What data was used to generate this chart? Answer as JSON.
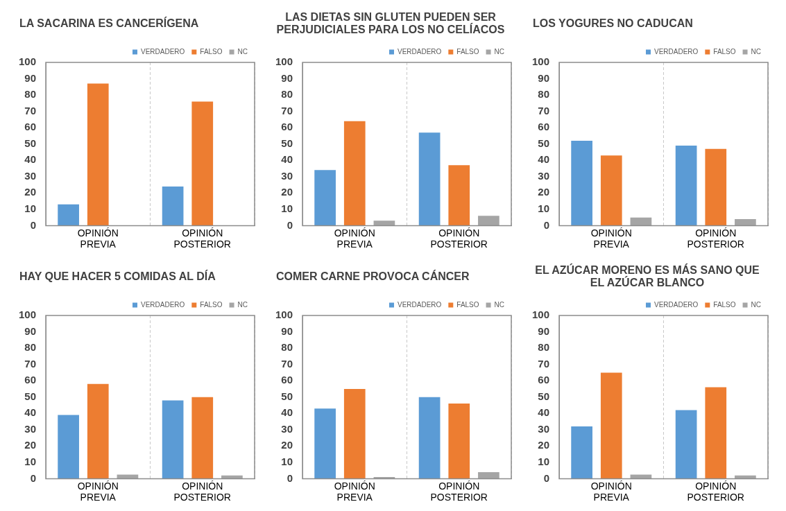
{
  "chart_data": [
    {
      "type": "bar",
      "title": "LA SACARINA ES CANCERÍGENA",
      "categories": [
        "OPINIÓN PREVIA",
        "OPINIÓN POSTERIOR"
      ],
      "series": [
        {
          "name": "VERDADERO",
          "color": "#5b9bd5",
          "values": [
            13,
            24
          ]
        },
        {
          "name": "FALSO",
          "color": "#ed7d31",
          "values": [
            87,
            76
          ]
        },
        {
          "name": "NC",
          "color": "#a5a5a5",
          "values": [
            0,
            0
          ]
        }
      ],
      "ylim": [
        0,
        100
      ],
      "yticks": [
        0,
        10,
        20,
        30,
        40,
        50,
        60,
        70,
        80,
        90,
        100
      ],
      "legend": "top right",
      "grid": "x"
    },
    {
      "type": "bar",
      "title": "LAS DIETAS SIN GLUTEN PUEDEN SER PERJUDICIALES PARA LOS NO CELÍACOS",
      "categories": [
        "OPINIÓN PREVIA",
        "OPINIÓN POSTERIOR"
      ],
      "series": [
        {
          "name": "VERDADERO",
          "color": "#5b9bd5",
          "values": [
            34,
            57
          ]
        },
        {
          "name": "FALSO",
          "color": "#ed7d31",
          "values": [
            64,
            37
          ]
        },
        {
          "name": "NC",
          "color": "#a5a5a5",
          "values": [
            3,
            6
          ]
        }
      ],
      "ylim": [
        0,
        100
      ],
      "yticks": [
        0,
        10,
        20,
        30,
        40,
        50,
        60,
        70,
        80,
        90,
        100
      ],
      "legend": "top right",
      "grid": "x"
    },
    {
      "type": "bar",
      "title": "LOS YOGURES NO CADUCAN",
      "categories": [
        "OPINIÓN PREVIA",
        "OPINIÓN POSTERIOR"
      ],
      "series": [
        {
          "name": "VERDADERO",
          "color": "#5b9bd5",
          "values": [
            52,
            49
          ]
        },
        {
          "name": "FALSO",
          "color": "#ed7d31",
          "values": [
            43,
            47
          ]
        },
        {
          "name": "NC",
          "color": "#a5a5a5",
          "values": [
            5,
            4
          ]
        }
      ],
      "ylim": [
        0,
        100
      ],
      "yticks": [
        0,
        10,
        20,
        30,
        40,
        50,
        60,
        70,
        80,
        90,
        100
      ],
      "legend": "top right",
      "grid": "x"
    },
    {
      "type": "bar",
      "title": "HAY QUE HACER 5 COMIDAS AL DÍA",
      "categories": [
        "OPINIÓN PREVIA",
        "OPINIÓN POSTERIOR"
      ],
      "series": [
        {
          "name": "VERDADERO",
          "color": "#5b9bd5",
          "values": [
            39,
            48
          ]
        },
        {
          "name": "FALSO",
          "color": "#ed7d31",
          "values": [
            58,
            50
          ]
        },
        {
          "name": "NC",
          "color": "#a5a5a5",
          "values": [
            2.5,
            2
          ]
        }
      ],
      "ylim": [
        0,
        100
      ],
      "yticks": [
        0,
        10,
        20,
        30,
        40,
        50,
        60,
        70,
        80,
        90,
        100
      ],
      "legend": "top right",
      "grid": "x"
    },
    {
      "type": "bar",
      "title": "COMER CARNE PROVOCA CÁNCER",
      "categories": [
        "OPINIÓN PREVIA",
        "OPINIÓN POSTERIOR"
      ],
      "series": [
        {
          "name": "VERDADERO",
          "color": "#5b9bd5",
          "values": [
            43,
            50
          ]
        },
        {
          "name": "FALSO",
          "color": "#ed7d31",
          "values": [
            55,
            46
          ]
        },
        {
          "name": "NC",
          "color": "#a5a5a5",
          "values": [
            1,
            4
          ]
        }
      ],
      "ylim": [
        0,
        100
      ],
      "yticks": [
        0,
        10,
        20,
        30,
        40,
        50,
        60,
        70,
        80,
        90,
        100
      ],
      "legend": "top right",
      "grid": "x"
    },
    {
      "type": "bar",
      "title": "EL AZÚCAR MORENO ES MÁS SANO QUE EL AZÚCAR BLANCO",
      "categories": [
        "OPINIÓN PREVIA",
        "OPINIÓN POSTERIOR"
      ],
      "series": [
        {
          "name": "VERDADERO",
          "color": "#5b9bd5",
          "values": [
            32,
            42
          ]
        },
        {
          "name": "FALSO",
          "color": "#ed7d31",
          "values": [
            65,
            56
          ]
        },
        {
          "name": "NC",
          "color": "#a5a5a5",
          "values": [
            2.5,
            2
          ]
        }
      ],
      "ylim": [
        0,
        100
      ],
      "yticks": [
        0,
        10,
        20,
        30,
        40,
        50,
        60,
        70,
        80,
        90,
        100
      ],
      "legend": "top right",
      "grid": "x"
    }
  ]
}
